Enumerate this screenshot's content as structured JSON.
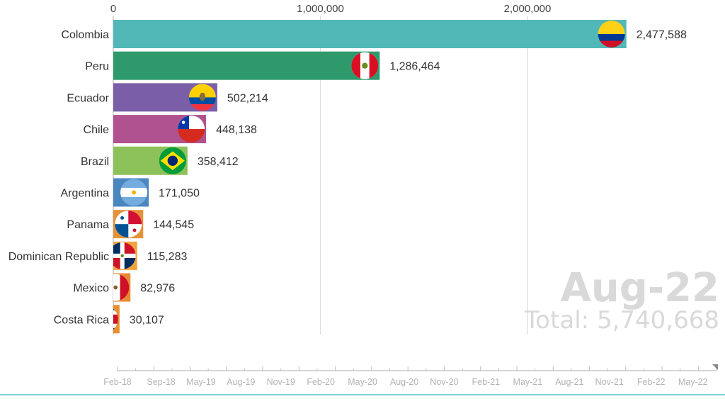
{
  "chart_data": {
    "type": "bar",
    "orientation": "horizontal",
    "date": "Aug-22",
    "total_label": "Total: 5,740,668",
    "xlim": [
      0,
      2500000
    ],
    "x_ticks": [
      {
        "value": 0,
        "label": "0"
      },
      {
        "value": 1000000,
        "label": "1,000,000"
      },
      {
        "value": 2000000,
        "label": "2,000,000"
      }
    ],
    "categories": [
      "Colombia",
      "Peru",
      "Ecuador",
      "Chile",
      "Brazil",
      "Argentina",
      "Panama",
      "Dominican Republic",
      "Mexico",
      "Costa Rica"
    ],
    "values": [
      2477588,
      1286464,
      502214,
      448138,
      358412,
      171050,
      144545,
      115283,
      82976,
      30107
    ],
    "value_labels": [
      "2,477,588",
      "1,286,464",
      "502,214",
      "448,138",
      "358,412",
      "171,050",
      "144,545",
      "115,283",
      "82,976",
      "30,107"
    ],
    "colors": [
      "#52b7b7",
      "#2e9a6c",
      "#7a5fa8",
      "#b0528f",
      "#8dc25a",
      "#4a87c0",
      "#e59139",
      "#f0a33a",
      "#e88a33",
      "#e8902e"
    ],
    "flags": [
      "colombia-flag",
      "peru-flag",
      "ecuador-flag",
      "chile-flag",
      "brazil-flag",
      "argentina-flag",
      "panama-flag",
      "dominican-republic-flag",
      "mexico-flag",
      "costa-rica-flag"
    ],
    "timeline": {
      "labels": [
        "Feb-18",
        "Sep-18",
        "May-19",
        "Aug-19",
        "Nov-19",
        "Feb-20",
        "May-20",
        "Aug-20",
        "Nov-20",
        "Feb-21",
        "May-21",
        "Aug-21",
        "Nov-21",
        "Feb-22",
        "May-22"
      ],
      "progress": 1.0
    }
  }
}
